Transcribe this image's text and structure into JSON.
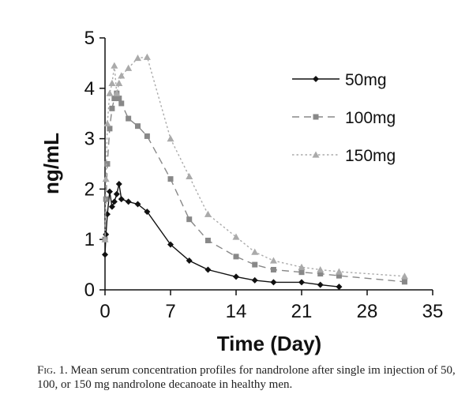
{
  "chart_data": {
    "type": "line",
    "xlabel": "Time (Day)",
    "ylabel": "ng/mL",
    "xlim": [
      0,
      35
    ],
    "ylim": [
      0,
      5
    ],
    "xticks": [
      0,
      7,
      14,
      21,
      28,
      35
    ],
    "yticks": [
      0,
      1,
      2,
      3,
      4,
      5
    ],
    "legend_position": "top-right",
    "series": [
      {
        "name": "50mg",
        "color": "#111111",
        "dash": "solid",
        "marker": "diamond",
        "points": [
          [
            0,
            0.7
          ],
          [
            0.1,
            1.1
          ],
          [
            0.25,
            1.5
          ],
          [
            0.5,
            1.95
          ],
          [
            0.75,
            1.65
          ],
          [
            1,
            1.75
          ],
          [
            1.25,
            1.9
          ],
          [
            1.5,
            2.1
          ],
          [
            1.75,
            1.8
          ],
          [
            2.5,
            1.75
          ],
          [
            3.5,
            1.7
          ],
          [
            4.5,
            1.55
          ],
          [
            7,
            0.9
          ],
          [
            9,
            0.58
          ],
          [
            11,
            0.4
          ],
          [
            14,
            0.26
          ],
          [
            16,
            0.19
          ],
          [
            18,
            0.15
          ],
          [
            21,
            0.15
          ],
          [
            23,
            0.1
          ],
          [
            25,
            0.06
          ]
        ]
      },
      {
        "name": "100mg",
        "color": "#888888",
        "dash": "dashed",
        "marker": "square",
        "points": [
          [
            0,
            1.0
          ],
          [
            0.1,
            1.8
          ],
          [
            0.25,
            2.5
          ],
          [
            0.5,
            3.2
          ],
          [
            0.75,
            3.6
          ],
          [
            1,
            3.8
          ],
          [
            1.25,
            3.9
          ],
          [
            1.5,
            3.8
          ],
          [
            1.75,
            3.7
          ],
          [
            2.5,
            3.4
          ],
          [
            3.5,
            3.25
          ],
          [
            4.5,
            3.05
          ],
          [
            7,
            2.2
          ],
          [
            9,
            1.4
          ],
          [
            11,
            0.98
          ],
          [
            14,
            0.66
          ],
          [
            16,
            0.5
          ],
          [
            18,
            0.4
          ],
          [
            21,
            0.35
          ],
          [
            23,
            0.32
          ],
          [
            25,
            0.28
          ],
          [
            32,
            0.16
          ]
        ]
      },
      {
        "name": "150mg",
        "color": "#aaaaaa",
        "dash": "dotted",
        "marker": "triangle",
        "points": [
          [
            0,
            1.0
          ],
          [
            0.1,
            2.2
          ],
          [
            0.25,
            3.3
          ],
          [
            0.5,
            3.9
          ],
          [
            0.75,
            4.1
          ],
          [
            1,
            4.45
          ],
          [
            1.25,
            3.9
          ],
          [
            1.5,
            4.1
          ],
          [
            1.75,
            4.25
          ],
          [
            2.5,
            4.4
          ],
          [
            3.5,
            4.6
          ],
          [
            4.5,
            4.62
          ],
          [
            7,
            3.0
          ],
          [
            9,
            2.25
          ],
          [
            11,
            1.5
          ],
          [
            14,
            1.05
          ],
          [
            16,
            0.75
          ],
          [
            18,
            0.58
          ],
          [
            21,
            0.45
          ],
          [
            23,
            0.4
          ],
          [
            25,
            0.36
          ],
          [
            32,
            0.27
          ]
        ]
      }
    ]
  },
  "caption": {
    "prefix": "Fig. 1.",
    "text": "Mean serum concentration profiles for nandrolone after single im injection of 50, 100, or 150 mg nandrolone decanoate in healthy men."
  }
}
